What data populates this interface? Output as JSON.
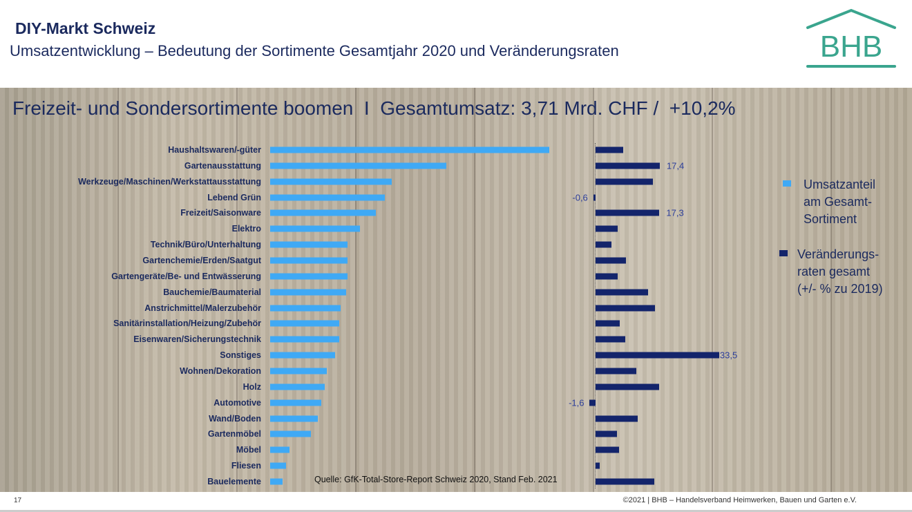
{
  "header": {
    "title": "DIY-Markt Schweiz",
    "subtitle": "Umsatzentwicklung – Bedeutung der Sortimente Gesamtjahr 2020 und Veränderungsraten",
    "logo_text": "BHB"
  },
  "colors": {
    "share": "#3fa9f5",
    "change": "#13246b",
    "logo": "#3aa58e"
  },
  "chart_data": {
    "type": "bar",
    "title": "Freizeit- und Sondersortimente boomen  I  Gesamtumsatz: 3,71 Mrd. CHF /  +10,2%",
    "categories": [
      "Haushaltswaren/-güter",
      "Gartenausstattung",
      "Werkzeuge/Maschinen/Werkstattausstattung",
      "Lebend Grün",
      "Freizeit/Saisonware",
      "Elektro",
      "Technik/Büro/Unterhaltung",
      "Gartenchemie/Erden/Saatgut",
      "Gartengeräte/Be- und Entwässerung",
      "Bauchemie/Baumaterial",
      "Anstrichmittel/Malerzubehör",
      "Sanitärinstallation/Heizung/Zubehör",
      "Eisenwaren/Sicherungstechnik",
      "Sonstiges",
      "Wohnen/Dekoration",
      "Holz",
      "Automotive",
      "Wand/Boden",
      "Gartenmöbel",
      "Möbel",
      "Fliesen",
      "Bauelemente"
    ],
    "series": [
      {
        "name": "Umsatzanteil am Gesamt-Sortiment",
        "values": [
          15.8,
          10.0,
          6.9,
          6.5,
          6.0,
          5.1,
          4.4,
          4.4,
          4.4,
          4.3,
          4.0,
          3.9,
          3.9,
          3.7,
          3.2,
          3.1,
          2.9,
          2.7,
          2.3,
          1.1,
          0.9,
          0.7
        ]
      },
      {
        "name": "Veränderungs-raten gesamt (+/- % zu 2019)",
        "values": [
          7.5,
          17.4,
          15.5,
          -0.6,
          17.3,
          6.0,
          4.3,
          8.2,
          6.0,
          14.2,
          16.1,
          6.6,
          8.1,
          33.5,
          11.0,
          17.2,
          -1.6,
          11.4,
          5.8,
          6.4,
          1.1,
          15.9
        ],
        "labels": {
          "1": "17,4",
          "3": "-0,6",
          "4": "17,3",
          "13": "33,5",
          "16": "-1,6"
        }
      }
    ],
    "legend": [
      {
        "lines": [
          "Umsatzanteil",
          "am Gesamt-",
          "Sortiment"
        ]
      },
      {
        "lines": [
          "Veränderungs-",
          "raten gesamt",
          "(+/- % zu 2019)"
        ]
      }
    ],
    "legend_position": "right"
  },
  "source": "Quelle: GfK-Total-Store-Report Schweiz 2020, Stand Feb. 2021",
  "footer": {
    "page": "17",
    "copyright": "©2021 | BHB – Handelsverband Heimwerken, Bauen und Garten e.V."
  }
}
